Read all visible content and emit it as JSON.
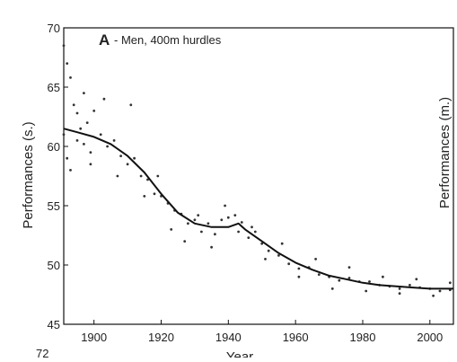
{
  "chart_data": {
    "type": "scatter",
    "panel_letter": "A",
    "panel_title": "- Men, 400m hurdles",
    "xlabel": "Year",
    "ylabel_left": "Performances (s.)",
    "ylabel_right": "Performances (m.)",
    "xlim": [
      1891,
      2007
    ],
    "ylim": [
      45,
      70
    ],
    "xticks": [
      1900,
      1920,
      1940,
      1960,
      1980,
      2000
    ],
    "yticks": [
      45,
      50,
      55,
      60,
      65,
      70
    ],
    "next_panel_tick": "72",
    "grid": false,
    "series": [
      {
        "kind": "points",
        "color": "#333333",
        "x": [
          1891,
          1892,
          1893,
          1894,
          1895,
          1896,
          1897,
          1898,
          1899,
          1900,
          1902,
          1904,
          1906,
          1908,
          1910,
          1912,
          1914,
          1916,
          1918,
          1920,
          1922,
          1924,
          1926,
          1928,
          1930,
          1932,
          1934,
          1936,
          1938,
          1940,
          1942,
          1944,
          1946,
          1948,
          1950,
          1952,
          1955,
          1958,
          1961,
          1964,
          1967,
          1970,
          1973,
          1976,
          1979,
          1982,
          1985,
          1988,
          1991,
          1994,
          1997,
          2000,
          2003,
          2006,
          1891,
          1892,
          1893,
          1895,
          1897,
          1899,
          1903,
          1907,
          1911,
          1915,
          1919,
          1923,
          1927,
          1931,
          1935,
          1939,
          1943,
          1947,
          1951,
          1956,
          1961,
          1966,
          1971,
          1976,
          1981,
          1986,
          1991,
          1996,
          2001,
          2006
        ],
        "y": [
          68.5,
          67.0,
          65.8,
          63.5,
          62.8,
          61.5,
          60.2,
          62.0,
          59.5,
          63.0,
          61.0,
          60.0,
          60.5,
          59.2,
          58.5,
          59.0,
          57.5,
          57.2,
          56.0,
          55.8,
          55.2,
          54.6,
          54.3,
          53.5,
          53.8,
          52.8,
          53.5,
          52.6,
          53.8,
          54.0,
          54.2,
          53.6,
          52.3,
          52.8,
          51.8,
          51.2,
          50.8,
          50.1,
          49.7,
          49.8,
          49.2,
          49.0,
          48.7,
          48.9,
          48.6,
          48.6,
          48.3,
          48.2,
          48.0,
          48.3,
          48.1,
          48.0,
          47.8,
          47.9,
          61.0,
          59.0,
          58.0,
          60.5,
          64.5,
          58.5,
          64.0,
          57.5,
          63.5,
          55.8,
          57.5,
          53.0,
          52.0,
          54.2,
          51.5,
          55.0,
          52.8,
          53.2,
          50.5,
          51.8,
          49.0,
          50.5,
          48.0,
          49.8,
          47.8,
          49.0,
          47.6,
          48.8,
          47.4,
          48.5
        ]
      },
      {
        "kind": "fit",
        "color": "#111111",
        "x": [
          1891,
          1895,
          1900,
          1905,
          1910,
          1915,
          1920,
          1925,
          1930,
          1935,
          1940,
          1943,
          1945,
          1950,
          1955,
          1960,
          1965,
          1970,
          1975,
          1980,
          1985,
          1990,
          1995,
          2000,
          2005,
          2007
        ],
        "y": [
          61.5,
          61.2,
          60.8,
          60.2,
          59.2,
          57.8,
          56.0,
          54.4,
          53.5,
          53.2,
          53.2,
          53.5,
          53.0,
          52.0,
          51.0,
          50.2,
          49.6,
          49.1,
          48.8,
          48.5,
          48.3,
          48.2,
          48.1,
          48.0,
          48.0,
          48.0
        ]
      }
    ]
  }
}
